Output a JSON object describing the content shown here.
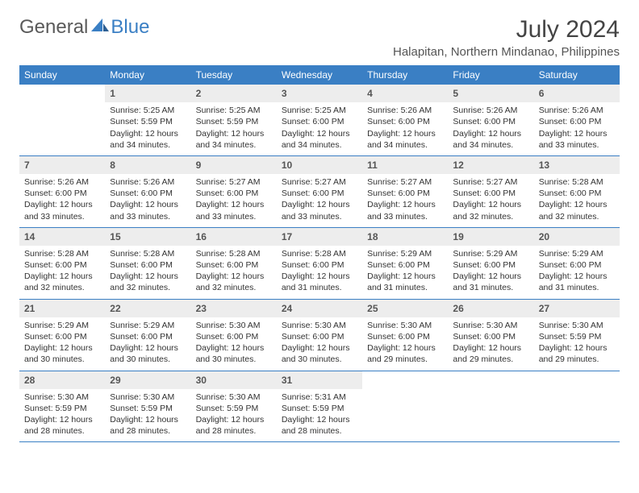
{
  "brand": {
    "part1": "General",
    "part2": "Blue"
  },
  "title": "July 2024",
  "location": "Halapitan, Northern Mindanao, Philippines",
  "colors": {
    "header_bg": "#3a7fc4",
    "header_text": "#ffffff",
    "daynum_bg": "#ededed",
    "daynum_text": "#555555",
    "body_text": "#333333",
    "row_border": "#3a7fc4",
    "page_bg": "#ffffff"
  },
  "typography": {
    "title_fontsize": 30,
    "location_fontsize": 15,
    "dayheader_fontsize": 12,
    "daynum_fontsize": 12,
    "cell_fontsize": 10.5
  },
  "layout": {
    "columns": 7,
    "rows": 5,
    "cell_min_height": 84
  },
  "day_headers": [
    "Sunday",
    "Monday",
    "Tuesday",
    "Wednesday",
    "Thursday",
    "Friday",
    "Saturday"
  ],
  "weeks": [
    [
      {
        "n": "",
        "sunrise": "",
        "sunset": "",
        "daylight": ""
      },
      {
        "n": "1",
        "sunrise": "Sunrise: 5:25 AM",
        "sunset": "Sunset: 5:59 PM",
        "daylight": "Daylight: 12 hours and 34 minutes."
      },
      {
        "n": "2",
        "sunrise": "Sunrise: 5:25 AM",
        "sunset": "Sunset: 5:59 PM",
        "daylight": "Daylight: 12 hours and 34 minutes."
      },
      {
        "n": "3",
        "sunrise": "Sunrise: 5:25 AM",
        "sunset": "Sunset: 6:00 PM",
        "daylight": "Daylight: 12 hours and 34 minutes."
      },
      {
        "n": "4",
        "sunrise": "Sunrise: 5:26 AM",
        "sunset": "Sunset: 6:00 PM",
        "daylight": "Daylight: 12 hours and 34 minutes."
      },
      {
        "n": "5",
        "sunrise": "Sunrise: 5:26 AM",
        "sunset": "Sunset: 6:00 PM",
        "daylight": "Daylight: 12 hours and 34 minutes."
      },
      {
        "n": "6",
        "sunrise": "Sunrise: 5:26 AM",
        "sunset": "Sunset: 6:00 PM",
        "daylight": "Daylight: 12 hours and 33 minutes."
      }
    ],
    [
      {
        "n": "7",
        "sunrise": "Sunrise: 5:26 AM",
        "sunset": "Sunset: 6:00 PM",
        "daylight": "Daylight: 12 hours and 33 minutes."
      },
      {
        "n": "8",
        "sunrise": "Sunrise: 5:26 AM",
        "sunset": "Sunset: 6:00 PM",
        "daylight": "Daylight: 12 hours and 33 minutes."
      },
      {
        "n": "9",
        "sunrise": "Sunrise: 5:27 AM",
        "sunset": "Sunset: 6:00 PM",
        "daylight": "Daylight: 12 hours and 33 minutes."
      },
      {
        "n": "10",
        "sunrise": "Sunrise: 5:27 AM",
        "sunset": "Sunset: 6:00 PM",
        "daylight": "Daylight: 12 hours and 33 minutes."
      },
      {
        "n": "11",
        "sunrise": "Sunrise: 5:27 AM",
        "sunset": "Sunset: 6:00 PM",
        "daylight": "Daylight: 12 hours and 33 minutes."
      },
      {
        "n": "12",
        "sunrise": "Sunrise: 5:27 AM",
        "sunset": "Sunset: 6:00 PM",
        "daylight": "Daylight: 12 hours and 32 minutes."
      },
      {
        "n": "13",
        "sunrise": "Sunrise: 5:28 AM",
        "sunset": "Sunset: 6:00 PM",
        "daylight": "Daylight: 12 hours and 32 minutes."
      }
    ],
    [
      {
        "n": "14",
        "sunrise": "Sunrise: 5:28 AM",
        "sunset": "Sunset: 6:00 PM",
        "daylight": "Daylight: 12 hours and 32 minutes."
      },
      {
        "n": "15",
        "sunrise": "Sunrise: 5:28 AM",
        "sunset": "Sunset: 6:00 PM",
        "daylight": "Daylight: 12 hours and 32 minutes."
      },
      {
        "n": "16",
        "sunrise": "Sunrise: 5:28 AM",
        "sunset": "Sunset: 6:00 PM",
        "daylight": "Daylight: 12 hours and 32 minutes."
      },
      {
        "n": "17",
        "sunrise": "Sunrise: 5:28 AM",
        "sunset": "Sunset: 6:00 PM",
        "daylight": "Daylight: 12 hours and 31 minutes."
      },
      {
        "n": "18",
        "sunrise": "Sunrise: 5:29 AM",
        "sunset": "Sunset: 6:00 PM",
        "daylight": "Daylight: 12 hours and 31 minutes."
      },
      {
        "n": "19",
        "sunrise": "Sunrise: 5:29 AM",
        "sunset": "Sunset: 6:00 PM",
        "daylight": "Daylight: 12 hours and 31 minutes."
      },
      {
        "n": "20",
        "sunrise": "Sunrise: 5:29 AM",
        "sunset": "Sunset: 6:00 PM",
        "daylight": "Daylight: 12 hours and 31 minutes."
      }
    ],
    [
      {
        "n": "21",
        "sunrise": "Sunrise: 5:29 AM",
        "sunset": "Sunset: 6:00 PM",
        "daylight": "Daylight: 12 hours and 30 minutes."
      },
      {
        "n": "22",
        "sunrise": "Sunrise: 5:29 AM",
        "sunset": "Sunset: 6:00 PM",
        "daylight": "Daylight: 12 hours and 30 minutes."
      },
      {
        "n": "23",
        "sunrise": "Sunrise: 5:30 AM",
        "sunset": "Sunset: 6:00 PM",
        "daylight": "Daylight: 12 hours and 30 minutes."
      },
      {
        "n": "24",
        "sunrise": "Sunrise: 5:30 AM",
        "sunset": "Sunset: 6:00 PM",
        "daylight": "Daylight: 12 hours and 30 minutes."
      },
      {
        "n": "25",
        "sunrise": "Sunrise: 5:30 AM",
        "sunset": "Sunset: 6:00 PM",
        "daylight": "Daylight: 12 hours and 29 minutes."
      },
      {
        "n": "26",
        "sunrise": "Sunrise: 5:30 AM",
        "sunset": "Sunset: 6:00 PM",
        "daylight": "Daylight: 12 hours and 29 minutes."
      },
      {
        "n": "27",
        "sunrise": "Sunrise: 5:30 AM",
        "sunset": "Sunset: 5:59 PM",
        "daylight": "Daylight: 12 hours and 29 minutes."
      }
    ],
    [
      {
        "n": "28",
        "sunrise": "Sunrise: 5:30 AM",
        "sunset": "Sunset: 5:59 PM",
        "daylight": "Daylight: 12 hours and 28 minutes."
      },
      {
        "n": "29",
        "sunrise": "Sunrise: 5:30 AM",
        "sunset": "Sunset: 5:59 PM",
        "daylight": "Daylight: 12 hours and 28 minutes."
      },
      {
        "n": "30",
        "sunrise": "Sunrise: 5:30 AM",
        "sunset": "Sunset: 5:59 PM",
        "daylight": "Daylight: 12 hours and 28 minutes."
      },
      {
        "n": "31",
        "sunrise": "Sunrise: 5:31 AM",
        "sunset": "Sunset: 5:59 PM",
        "daylight": "Daylight: 12 hours and 28 minutes."
      },
      {
        "n": "",
        "sunrise": "",
        "sunset": "",
        "daylight": ""
      },
      {
        "n": "",
        "sunrise": "",
        "sunset": "",
        "daylight": ""
      },
      {
        "n": "",
        "sunrise": "",
        "sunset": "",
        "daylight": ""
      }
    ]
  ]
}
